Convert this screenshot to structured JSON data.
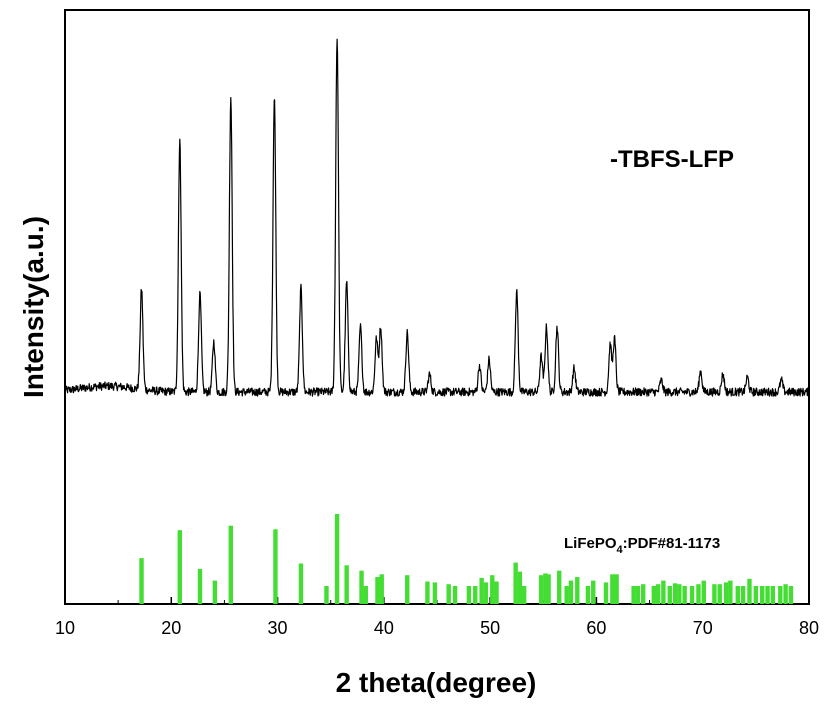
{
  "chart_data": {
    "type": "line",
    "xlabel": "2 theta(degree)",
    "ylabel": "Intensity(a.u.)",
    "xlim": [
      10,
      80
    ],
    "xticks": [
      10,
      20,
      30,
      40,
      50,
      60,
      70,
      80
    ],
    "yticks_shown": false,
    "grid": false,
    "series": [
      {
        "name": "-TBFS-LFP",
        "kind": "xrd-pattern",
        "color": "#000000",
        "background_baseline": 0.05,
        "background_hump": {
          "center": 14,
          "height": 0.02
        },
        "peaks": [
          {
            "x": 17.2,
            "y": 0.34
          },
          {
            "x": 20.8,
            "y": 0.85
          },
          {
            "x": 22.7,
            "y": 0.33
          },
          {
            "x": 24.0,
            "y": 0.17
          },
          {
            "x": 25.6,
            "y": 1.0
          },
          {
            "x": 29.7,
            "y": 1.0
          },
          {
            "x": 32.2,
            "y": 0.35
          },
          {
            "x": 35.6,
            "y": 1.2
          },
          {
            "x": 36.5,
            "y": 0.37
          },
          {
            "x": 37.8,
            "y": 0.22
          },
          {
            "x": 39.3,
            "y": 0.18
          },
          {
            "x": 39.7,
            "y": 0.22
          },
          {
            "x": 42.2,
            "y": 0.2
          },
          {
            "x": 44.3,
            "y": 0.06
          },
          {
            "x": 49.0,
            "y": 0.09
          },
          {
            "x": 49.9,
            "y": 0.11
          },
          {
            "x": 52.5,
            "y": 0.34
          },
          {
            "x": 54.8,
            "y": 0.12
          },
          {
            "x": 55.3,
            "y": 0.22
          },
          {
            "x": 56.3,
            "y": 0.22
          },
          {
            "x": 57.9,
            "y": 0.08
          },
          {
            "x": 61.3,
            "y": 0.16
          },
          {
            "x": 61.7,
            "y": 0.18
          },
          {
            "x": 66.1,
            "y": 0.04
          },
          {
            "x": 69.8,
            "y": 0.07
          },
          {
            "x": 71.9,
            "y": 0.06
          },
          {
            "x": 74.2,
            "y": 0.05
          },
          {
            "x": 77.4,
            "y": 0.04
          }
        ]
      },
      {
        "name": "LiFePO",
        "name_subscript": "4",
        "name_suffix": ":PDF#81-1173",
        "kind": "reference-sticks",
        "color": "#44dd33",
        "sticks": [
          {
            "x": 17.2,
            "y": 0.51
          },
          {
            "x": 20.8,
            "y": 0.82
          },
          {
            "x": 22.7,
            "y": 0.39
          },
          {
            "x": 24.1,
            "y": 0.26
          },
          {
            "x": 25.6,
            "y": 0.87
          },
          {
            "x": 29.8,
            "y": 0.83
          },
          {
            "x": 32.2,
            "y": 0.45
          },
          {
            "x": 34.6,
            "y": 0.2
          },
          {
            "x": 35.6,
            "y": 1.0
          },
          {
            "x": 36.5,
            "y": 0.43
          },
          {
            "x": 37.9,
            "y": 0.37
          },
          {
            "x": 38.3,
            "y": 0.2
          },
          {
            "x": 39.4,
            "y": 0.3
          },
          {
            "x": 39.8,
            "y": 0.33
          },
          {
            "x": 42.2,
            "y": 0.32
          },
          {
            "x": 44.1,
            "y": 0.25
          },
          {
            "x": 44.8,
            "y": 0.24
          },
          {
            "x": 46.1,
            "y": 0.22
          },
          {
            "x": 46.7,
            "y": 0.2
          },
          {
            "x": 48.0,
            "y": 0.2
          },
          {
            "x": 48.6,
            "y": 0.2
          },
          {
            "x": 49.2,
            "y": 0.29
          },
          {
            "x": 49.6,
            "y": 0.24
          },
          {
            "x": 50.2,
            "y": 0.32
          },
          {
            "x": 50.6,
            "y": 0.25
          },
          {
            "x": 52.4,
            "y": 0.46
          },
          {
            "x": 52.8,
            "y": 0.36
          },
          {
            "x": 53.2,
            "y": 0.2
          },
          {
            "x": 54.8,
            "y": 0.32
          },
          {
            "x": 55.2,
            "y": 0.34
          },
          {
            "x": 55.5,
            "y": 0.33
          },
          {
            "x": 56.5,
            "y": 0.37
          },
          {
            "x": 57.2,
            "y": 0.2
          },
          {
            "x": 57.6,
            "y": 0.26
          },
          {
            "x": 58.2,
            "y": 0.3
          },
          {
            "x": 59.2,
            "y": 0.2
          },
          {
            "x": 59.7,
            "y": 0.26
          },
          {
            "x": 60.9,
            "y": 0.24
          },
          {
            "x": 61.5,
            "y": 0.33
          },
          {
            "x": 61.9,
            "y": 0.33
          },
          {
            "x": 63.5,
            "y": 0.2
          },
          {
            "x": 63.9,
            "y": 0.2
          },
          {
            "x": 64.4,
            "y": 0.22
          },
          {
            "x": 65.4,
            "y": 0.2
          },
          {
            "x": 65.8,
            "y": 0.22
          },
          {
            "x": 66.3,
            "y": 0.26
          },
          {
            "x": 66.9,
            "y": 0.2
          },
          {
            "x": 67.4,
            "y": 0.23
          },
          {
            "x": 67.8,
            "y": 0.22
          },
          {
            "x": 68.3,
            "y": 0.2
          },
          {
            "x": 69.0,
            "y": 0.2
          },
          {
            "x": 69.6,
            "y": 0.22
          },
          {
            "x": 70.1,
            "y": 0.26
          },
          {
            "x": 71.1,
            "y": 0.22
          },
          {
            "x": 71.6,
            "y": 0.22
          },
          {
            "x": 72.2,
            "y": 0.24
          },
          {
            "x": 72.6,
            "y": 0.26
          },
          {
            "x": 73.3,
            "y": 0.2
          },
          {
            "x": 73.8,
            "y": 0.2
          },
          {
            "x": 74.4,
            "y": 0.28
          },
          {
            "x": 75.0,
            "y": 0.2
          },
          {
            "x": 75.6,
            "y": 0.2
          },
          {
            "x": 76.1,
            "y": 0.2
          },
          {
            "x": 76.6,
            "y": 0.2
          },
          {
            "x": 77.3,
            "y": 0.2
          },
          {
            "x": 77.8,
            "y": 0.22
          },
          {
            "x": 78.3,
            "y": 0.2
          }
        ]
      }
    ]
  }
}
